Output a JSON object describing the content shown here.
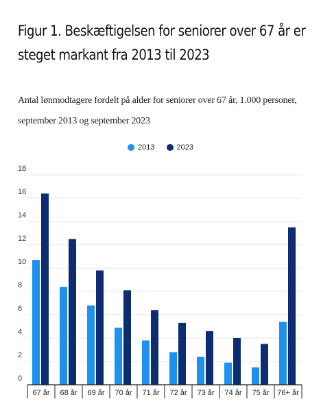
{
  "figure": {
    "title": "Figur 1. Beskæftigelsen for seniorer over 67 år er steget markant fra 2013 til 2023",
    "subtitle": "Antal lønmodtagere fordelt på alder for seniorer over 67 år, 1.000 personer, september 2013 og september 2023"
  },
  "colors": {
    "series_2013": "#1E90F0",
    "series_2023": "#0D2D73",
    "grid": "#E6E6E6",
    "axis": "#222222"
  },
  "chart_data": {
    "type": "bar",
    "categories": [
      "67 år",
      "68 år",
      "69 år",
      "70 år",
      "71 år",
      "72 år",
      "73 år",
      "74 år",
      "75 år",
      "76+ år"
    ],
    "series": [
      {
        "name": "2013",
        "values": [
          10.7,
          8.4,
          6.8,
          4.9,
          3.8,
          2.8,
          2.4,
          1.9,
          1.5,
          5.4
        ]
      },
      {
        "name": "2023",
        "values": [
          16.4,
          12.5,
          9.8,
          8.1,
          6.4,
          5.3,
          4.6,
          4.0,
          3.5,
          13.5
        ]
      }
    ],
    "yticks": [
      "0",
      "2",
      "4",
      "6",
      "8",
      "10",
      "12",
      "14",
      "16",
      "18"
    ],
    "ylim": [
      0,
      18
    ],
    "grid": true,
    "legend_position": "top-center"
  }
}
